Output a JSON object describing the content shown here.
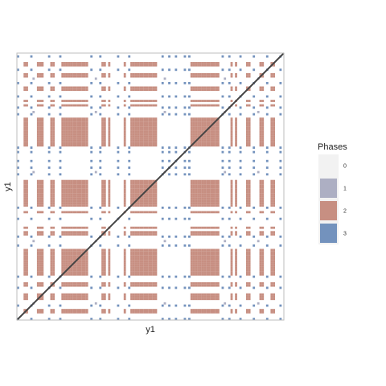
{
  "chart_data": {
    "type": "heatmap",
    "title": "",
    "xlabel": "y1",
    "ylabel": "y1",
    "n": 120,
    "phase_sequence": [
      3,
      0,
      0,
      2,
      2,
      0,
      3,
      1,
      0,
      2,
      2,
      2,
      0,
      0,
      3,
      2,
      2,
      0,
      0,
      3,
      2,
      2,
      2,
      2,
      2,
      2,
      2,
      2,
      2,
      2,
      2,
      2,
      0,
      3,
      0,
      1,
      0,
      3,
      2,
      2,
      0,
      2,
      0,
      0,
      0,
      3,
      0,
      0,
      2,
      0,
      3,
      2,
      2,
      2,
      2,
      2,
      2,
      2,
      2,
      2,
      2,
      2,
      2,
      0,
      0,
      3,
      1,
      0,
      3,
      0,
      0,
      3,
      0,
      0,
      0,
      3,
      0,
      3,
      2,
      2,
      2,
      2,
      2,
      2,
      2,
      2,
      2,
      2,
      2,
      2,
      2,
      0,
      3,
      1,
      0,
      3,
      2,
      0,
      2,
      0,
      3,
      0,
      0,
      2,
      2,
      0,
      3,
      0,
      1,
      2,
      2,
      0,
      3,
      0,
      2,
      2,
      0,
      0,
      3,
      0
    ],
    "legend": {
      "title": "Phases",
      "items": [
        {
          "label": "0",
          "color": "#f2f2f2"
        },
        {
          "label": "1",
          "color": "#adafc3"
        },
        {
          "label": "2",
          "color": "#c78f82"
        },
        {
          "label": "3",
          "color": "#7392bd"
        }
      ]
    },
    "colors": {
      "0": "#ffffff",
      "1": "#adafc3",
      "2": "#c78f82",
      "3": "#7392bd"
    },
    "diagonal_line": true,
    "grid": false,
    "legend_position": "right"
  }
}
